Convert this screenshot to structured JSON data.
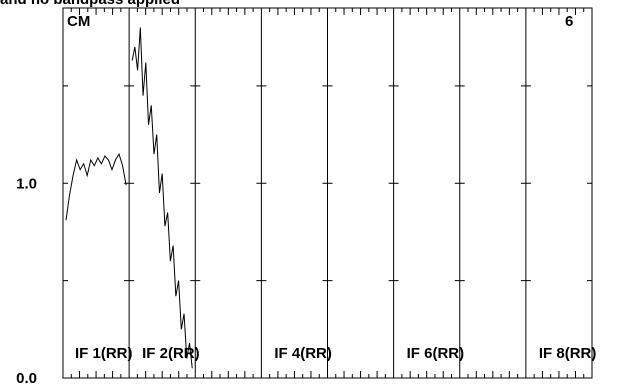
{
  "chart_data": {
    "type": "line",
    "title": "and no bandpass applied",
    "corner_left": "CM",
    "corner_right": "6",
    "ylim": [
      0,
      1.9
    ],
    "yticks": [
      {
        "value": 0,
        "label": "0.0"
      },
      {
        "value": 1,
        "label": "1.0"
      }
    ],
    "minor_yticks": [
      0.5,
      1.5
    ],
    "color": "#000000",
    "panels": [
      {
        "label": "IF 1(RR)",
        "values": [
          0.81,
          0.94,
          1.04,
          1.12,
          1.07,
          1.1,
          1.04,
          1.12,
          1.09,
          1.13,
          1.1,
          1.14,
          1.12,
          1.07,
          1.12,
          1.15,
          1.09,
          0.99
        ]
      },
      {
        "label": "IF 2(RR)",
        "values": [
          1.63,
          1.7,
          1.58,
          1.8,
          1.45,
          1.62,
          1.3,
          1.4,
          1.15,
          1.25,
          0.95,
          1.05,
          0.78,
          0.85,
          0.6,
          0.68,
          0.42,
          0.5,
          0.25,
          0.33,
          0.1,
          0.18,
          0.05
        ]
      },
      {
        "label": null,
        "values": []
      },
      {
        "label": "IF 4(RR)",
        "values": []
      },
      {
        "label": null,
        "values": []
      },
      {
        "label": "IF 6(RR)",
        "values": []
      },
      {
        "label": null,
        "values": []
      },
      {
        "label": "IF 8(RR)",
        "values": []
      }
    ]
  }
}
